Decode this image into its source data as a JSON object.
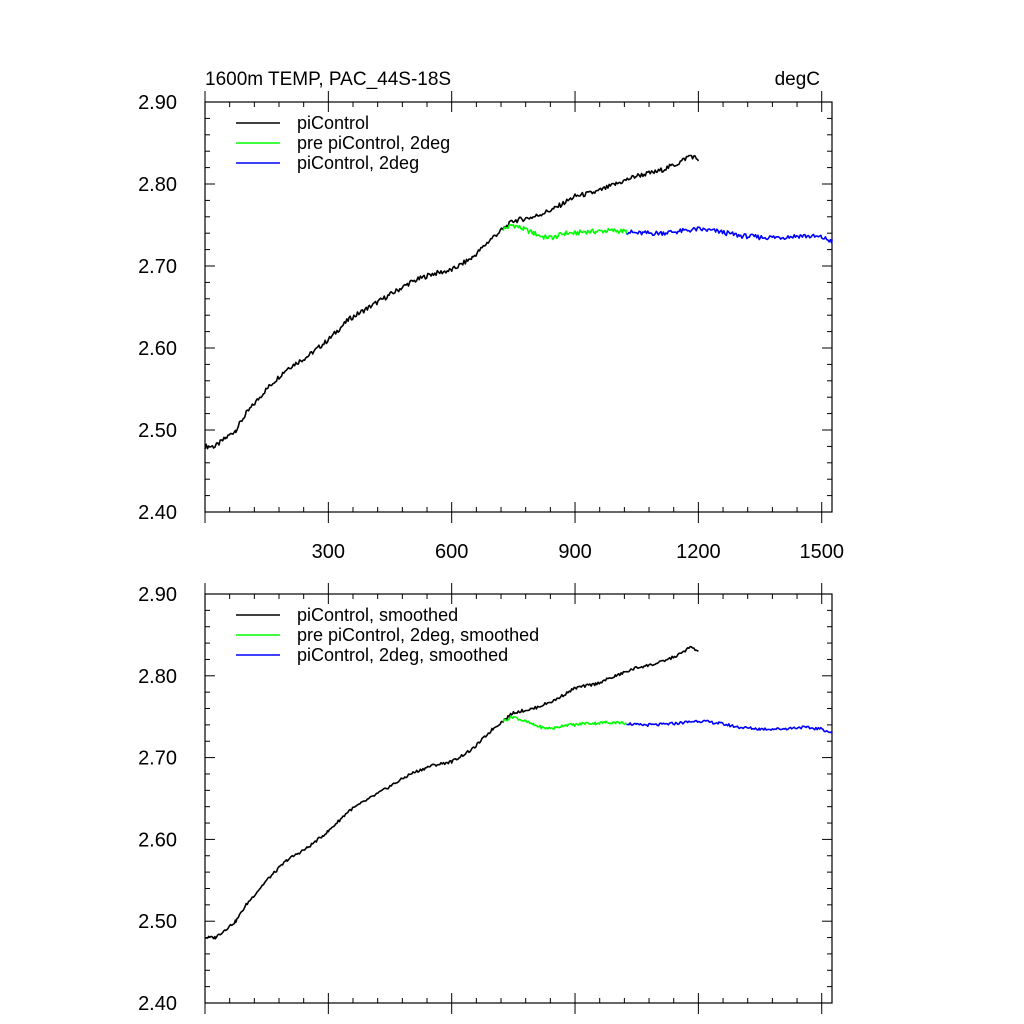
{
  "chart_data": [
    {
      "type": "line",
      "title_left": "1600m TEMP, PAC_44S-18S",
      "title_right": "degC",
      "xlim": [
        0,
        1525
      ],
      "ylim": [
        2.4,
        2.9
      ],
      "xticks": [
        300,
        600,
        900,
        1200,
        1500
      ],
      "xtick_labels": [
        "300",
        "600",
        "900",
        "1200",
        "1500"
      ],
      "yticks": [
        2.4,
        2.5,
        2.6,
        2.7,
        2.8,
        2.9
      ],
      "ytick_labels": [
        "2.40",
        "2.50",
        "2.60",
        "2.70",
        "2.80",
        "2.90"
      ],
      "legend": "top-left",
      "series": [
        {
          "name": "piControl",
          "color": "#000000",
          "x": [
            0,
            25,
            50,
            75,
            100,
            150,
            200,
            250,
            300,
            350,
            400,
            450,
            500,
            550,
            600,
            650,
            700,
            725,
            750,
            800,
            850,
            900,
            950,
            1000,
            1050,
            1100,
            1150,
            1180,
            1200
          ],
          "y": [
            2.48,
            2.48,
            2.49,
            2.5,
            2.52,
            2.55,
            2.575,
            2.59,
            2.61,
            2.635,
            2.65,
            2.665,
            2.68,
            2.69,
            2.695,
            2.71,
            2.735,
            2.745,
            2.755,
            2.76,
            2.77,
            2.785,
            2.79,
            2.8,
            2.81,
            2.815,
            2.825,
            2.835,
            2.83
          ]
        },
        {
          "name": "pre piControl, 2deg",
          "color": "#00ff00",
          "x": [
            725,
            750,
            775,
            800,
            825,
            850,
            875,
            900,
            925,
            950,
            975,
            1000,
            1025
          ],
          "y": [
            2.745,
            2.75,
            2.745,
            2.74,
            2.735,
            2.735,
            2.74,
            2.74,
            2.742,
            2.742,
            2.743,
            2.743,
            2.742
          ]
        },
        {
          "name": "piControl, 2deg",
          "color": "#0000ff",
          "x": [
            1025,
            1050,
            1100,
            1150,
            1200,
            1250,
            1300,
            1350,
            1400,
            1450,
            1500,
            1525
          ],
          "y": [
            2.742,
            2.74,
            2.74,
            2.742,
            2.745,
            2.742,
            2.737,
            2.735,
            2.735,
            2.737,
            2.735,
            2.73
          ]
        }
      ]
    },
    {
      "type": "line",
      "xlim": [
        0,
        1525
      ],
      "ylim": [
        2.4,
        2.9
      ],
      "yticks": [
        2.4,
        2.5,
        2.6,
        2.7,
        2.8,
        2.9
      ],
      "ytick_labels": [
        "2.40",
        "2.50",
        "2.60",
        "2.70",
        "2.80",
        "2.90"
      ],
      "legend": "top-left",
      "series": [
        {
          "name": "piControl, smoothed",
          "color": "#000000",
          "x": [
            0,
            25,
            50,
            75,
            100,
            150,
            200,
            250,
            300,
            350,
            400,
            450,
            500,
            550,
            600,
            650,
            700,
            725,
            750,
            800,
            850,
            900,
            950,
            1000,
            1050,
            1100,
            1150,
            1180,
            1200
          ],
          "y": [
            2.48,
            2.48,
            2.49,
            2.5,
            2.52,
            2.55,
            2.575,
            2.59,
            2.61,
            2.635,
            2.65,
            2.665,
            2.68,
            2.69,
            2.695,
            2.71,
            2.735,
            2.745,
            2.755,
            2.76,
            2.77,
            2.785,
            2.79,
            2.8,
            2.81,
            2.815,
            2.825,
            2.835,
            2.83
          ]
        },
        {
          "name": "pre piControl, 2deg, smoothed",
          "color": "#00ff00",
          "x": [
            725,
            750,
            775,
            800,
            825,
            850,
            875,
            900,
            925,
            950,
            975,
            1000,
            1025
          ],
          "y": [
            2.745,
            2.75,
            2.745,
            2.74,
            2.736,
            2.736,
            2.74,
            2.74,
            2.742,
            2.742,
            2.743,
            2.743,
            2.742
          ]
        },
        {
          "name": "piControl, 2deg, smoothed",
          "color": "#0000ff",
          "x": [
            1025,
            1050,
            1100,
            1150,
            1200,
            1250,
            1300,
            1350,
            1400,
            1450,
            1500,
            1525
          ],
          "y": [
            2.742,
            2.74,
            2.74,
            2.742,
            2.745,
            2.742,
            2.737,
            2.735,
            2.735,
            2.737,
            2.735,
            2.73
          ]
        }
      ]
    }
  ]
}
